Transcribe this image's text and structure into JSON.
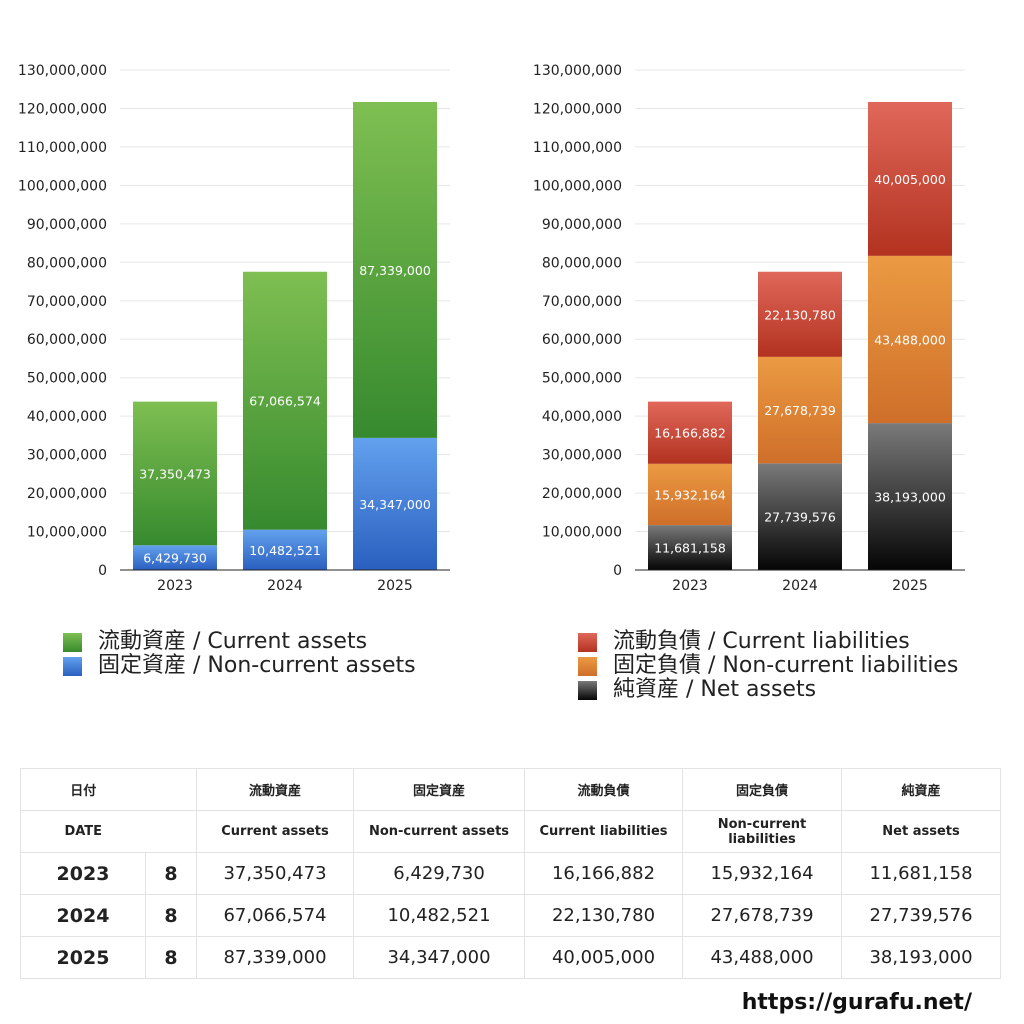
{
  "chart_data": [
    {
      "type": "bar",
      "stacked": true,
      "categories": [
        "2023",
        "2024",
        "2025"
      ],
      "series": [
        {
          "name": "固定資産 / Non-current assets",
          "values": [
            6429730,
            10482521,
            34347000
          ],
          "color": "#3d7ad8"
        },
        {
          "name": "流動資産 / Current assets",
          "values": [
            37350473,
            67066574,
            87339000
          ],
          "color": "#5aa83e"
        }
      ],
      "data_labels": [
        [
          "6,429,730",
          "10,482,521",
          "34,347,000"
        ],
        [
          "37,350,473",
          "67,066,574",
          "87,339,000"
        ]
      ],
      "ylim": [
        0,
        130000000
      ],
      "yticks": [
        0,
        10000000,
        20000000,
        30000000,
        40000000,
        50000000,
        60000000,
        70000000,
        80000000,
        90000000,
        100000000,
        110000000,
        120000000,
        130000000
      ],
      "ytick_labels": [
        "0",
        "10,000,000",
        "20,000,000",
        "30,000,000",
        "40,000,000",
        "50,000,000",
        "60,000,000",
        "70,000,000",
        "80,000,000",
        "90,000,000",
        "100,000,000",
        "110,000,000",
        "120,000,000",
        "130,000,000"
      ],
      "grid": true,
      "title": "",
      "xlabel": "",
      "ylabel": ""
    },
    {
      "type": "bar",
      "stacked": true,
      "categories": [
        "2023",
        "2024",
        "2025"
      ],
      "series": [
        {
          "name": "純資産 / Net assets",
          "values": [
            11681158,
            27739576,
            38193000
          ],
          "color": "#333333"
        },
        {
          "name": "固定負債 / Non-current liabilities",
          "values": [
            15932164,
            27678739,
            43488000
          ],
          "color": "#e08a35"
        },
        {
          "name": "流動負債 / Current liabilities",
          "values": [
            16166882,
            22130780,
            40005000
          ],
          "color": "#cd4434"
        }
      ],
      "data_labels": [
        [
          "11,681,158",
          "27,739,576",
          "38,193,000"
        ],
        [
          "15,932,164",
          "27,678,739",
          "43,488,000"
        ],
        [
          "16,166,882",
          "22,130,780",
          "40,005,000"
        ]
      ],
      "ylim": [
        0,
        130000000
      ],
      "yticks": [
        0,
        10000000,
        20000000,
        30000000,
        40000000,
        50000000,
        60000000,
        70000000,
        80000000,
        90000000,
        100000000,
        110000000,
        120000000,
        130000000
      ],
      "ytick_labels": [
        "0",
        "10,000,000",
        "20,000,000",
        "30,000,000",
        "40,000,000",
        "50,000,000",
        "60,000,000",
        "70,000,000",
        "80,000,000",
        "90,000,000",
        "100,000,000",
        "110,000,000",
        "120,000,000",
        "130,000,000"
      ],
      "grid": true,
      "title": "",
      "xlabel": "",
      "ylabel": ""
    }
  ],
  "legends": {
    "left": [
      {
        "label": "流動資産 / Current assets",
        "color": "#5aa83e"
      },
      {
        "label": "固定資産 / Non-current assets",
        "color": "#3d7ad8"
      }
    ],
    "right": [
      {
        "label": "流動負債 / Current liabilities",
        "color": "#cd4434"
      },
      {
        "label": "固定負債 / Non-current liabilities",
        "color": "#e08a35"
      },
      {
        "label": "純資産 / Net assets",
        "color": "#222222"
      }
    ]
  },
  "table": {
    "header_jp": {
      "date": "日付",
      "c1": "流動資産",
      "c2": "固定資産",
      "c3": "流動負債",
      "c4": "固定負債",
      "c5": "純資産"
    },
    "header_en": {
      "date": "DATE",
      "c1": "Current assets",
      "c2": "Non-current assets",
      "c3": "Current liabilities",
      "c4": "Non-current liabilities",
      "c5": "Net assets"
    },
    "rows": [
      {
        "year": "2023",
        "month": "8",
        "c1": "37,350,473",
        "c2": "6,429,730",
        "c3": "16,166,882",
        "c4": "15,932,164",
        "c5": "11,681,158"
      },
      {
        "year": "2024",
        "month": "8",
        "c1": "67,066,574",
        "c2": "10,482,521",
        "c3": "22,130,780",
        "c4": "27,678,739",
        "c5": "27,739,576"
      },
      {
        "year": "2025",
        "month": "8",
        "c1": "87,339,000",
        "c2": "34,347,000",
        "c3": "40,005,000",
        "c4": "43,488,000",
        "c5": "38,193,000"
      }
    ]
  },
  "footer": {
    "url": "https://gurafu.net/"
  }
}
